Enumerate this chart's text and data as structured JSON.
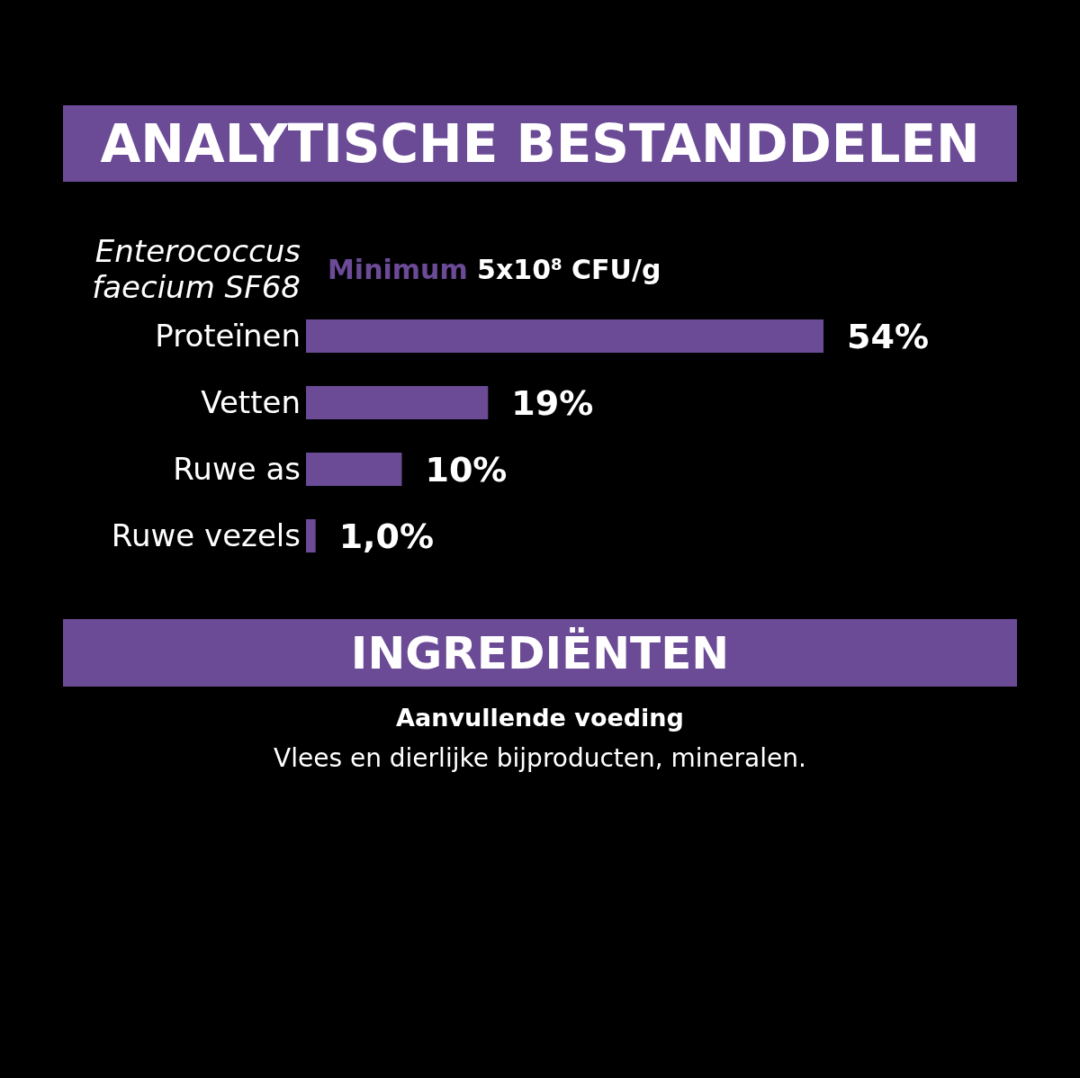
{
  "chart_data": {
    "type": "bar",
    "orientation": "horizontal",
    "title": "ANALYTISCHE BESTANDDELEN",
    "categories": [
      "Enterococcus faecium SF68",
      "Proteïnen",
      "Vetten",
      "Ruwe as",
      "Ruwe vezels"
    ],
    "values": [
      null,
      54,
      19,
      10,
      1.0
    ],
    "value_labels": [
      "Minimum 5x10$^{8}$ CFU/g",
      "54%",
      "19%",
      "10%",
      "1,0%"
    ],
    "color": "#6b4a96",
    "tick_labels": "y",
    "grid": false,
    "legend": false,
    "annotations": [
      "INGREDIËNTEN",
      "Aanvullende voeding",
      "Vlees en dierlijke bijproducten, mineralen."
    ]
  }
}
